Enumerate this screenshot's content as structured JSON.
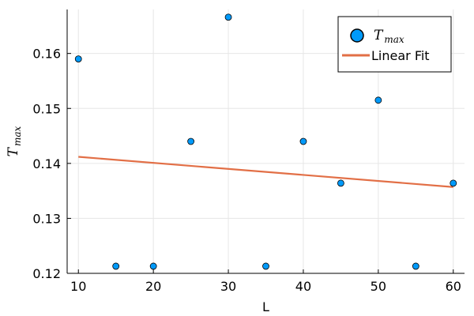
{
  "chart_data": {
    "type": "scatter",
    "title": "",
    "xlabel": "L",
    "ylabel": {
      "base": "T",
      "sub": "max"
    },
    "xlim": [
      8.5,
      61.5
    ],
    "ylim": [
      0.12,
      0.168
    ],
    "xticks": [
      10,
      20,
      30,
      40,
      50,
      60
    ],
    "yticks": [
      0.12,
      0.13,
      0.14,
      0.15,
      0.16
    ],
    "xtick_labels": [
      "10",
      "20",
      "30",
      "40",
      "50",
      "60"
    ],
    "ytick_labels": [
      "0.12",
      "0.13",
      "0.14",
      "0.15",
      "0.16"
    ],
    "grid": true,
    "legend_position": "top-right",
    "series": [
      {
        "name": {
          "base": "T",
          "sub": "max"
        },
        "kind": "scatter",
        "color": "#009AFA",
        "x": [
          10,
          15,
          20,
          25,
          30,
          35,
          40,
          45,
          50,
          55,
          60
        ],
        "y": [
          0.159,
          0.1213,
          0.1213,
          0.144,
          0.1666,
          0.1213,
          0.144,
          0.1364,
          0.1515,
          0.1213,
          0.1364
        ]
      },
      {
        "name": "Linear Fit",
        "kind": "line",
        "color": "#E26F46",
        "x": [
          10,
          60
        ],
        "y": [
          0.1412,
          0.1357
        ]
      }
    ]
  }
}
